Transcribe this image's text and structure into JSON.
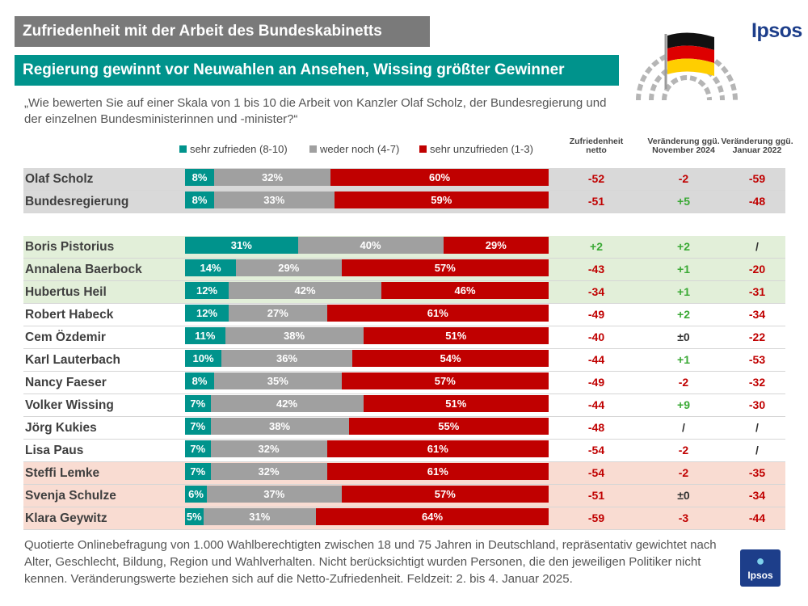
{
  "header": {
    "title": "Zufriedenheit mit der Arbeit des Bundeskabinetts",
    "subtitle": "Regierung gewinnt vor Neuwahlen an Ansehen, Wissing größter Gewinner",
    "question": "„Wie bewerten Sie auf einer Skala von 1 bis 10 die Arbeit von Kanzler Olaf Scholz, der Bundesregierung und der einzelnen Bundesministerinnen und -minister?“",
    "brand": "Ipsos"
  },
  "legend": [
    {
      "label": "sehr zufrieden (8-10)",
      "color": "#00938c"
    },
    {
      "label": "weder noch (4-7)",
      "color": "#a0a0a0"
    },
    {
      "label": "sehr unzufrieden (1-3)",
      "color": "#c00000"
    }
  ],
  "columns": {
    "net": [
      "Zufriedenheit",
      "netto"
    ],
    "nov": [
      "Veränderung ggü.",
      "November 2024"
    ],
    "jan": [
      "Veränderung ggü.",
      "Januar 2022"
    ]
  },
  "colors": {
    "positive": "#3aa935",
    "negative": "#c00000",
    "neutral": "#333333",
    "group_government": "#d9d9d9",
    "group_top": "#e2efd9",
    "group_bottom": "#f9dcd2"
  },
  "chart_data": {
    "type": "bar",
    "stacked": true,
    "orientation": "horizontal",
    "categories": [
      "Olaf Scholz",
      "Bundesregierung",
      "Boris Pistorius",
      "Annalena Baerbock",
      "Hubertus Heil",
      "Robert Habeck",
      "Cem Özdemir",
      "Karl Lauterbach",
      "Nancy Faeser",
      "Volker Wissing",
      "Jörg Kukies",
      "Lisa Paus",
      "Steffi Lemke",
      "Svenja Schulze",
      "Klara Geywitz"
    ],
    "groups": [
      "government",
      "government",
      "top",
      "top",
      "top",
      "mid",
      "mid",
      "mid",
      "mid",
      "mid",
      "mid",
      "mid",
      "bottom",
      "bottom",
      "bottom"
    ],
    "series": [
      {
        "name": "sehr zufrieden (8-10)",
        "values": [
          8,
          8,
          31,
          14,
          12,
          12,
          11,
          10,
          8,
          7,
          7,
          7,
          7,
          6,
          5
        ]
      },
      {
        "name": "weder noch (4-7)",
        "values": [
          32,
          33,
          40,
          29,
          42,
          27,
          38,
          36,
          35,
          42,
          38,
          32,
          32,
          37,
          31
        ]
      },
      {
        "name": "sehr unzufrieden (1-3)",
        "values": [
          60,
          59,
          29,
          57,
          46,
          61,
          51,
          54,
          57,
          51,
          55,
          61,
          61,
          57,
          64
        ]
      }
    ],
    "net": [
      "-52",
      "-51",
      "+2",
      "-43",
      "-34",
      "-49",
      "-40",
      "-44",
      "-49",
      "-44",
      "-48",
      "-54",
      "-54",
      "-51",
      "-59"
    ],
    "change_nov_2024": [
      "-2",
      "+5",
      "+2",
      "+1",
      "+1",
      "+2",
      "±0",
      "+1",
      "-2",
      "+9",
      "/",
      "-2",
      "-2",
      "±0",
      "-3"
    ],
    "change_jan_2022": [
      "-59",
      "-48",
      "/",
      "-20",
      "-31",
      "-34",
      "-22",
      "-53",
      "-32",
      "-30",
      "/",
      "/",
      "-35",
      "-34",
      "-44"
    ],
    "xlim": [
      0,
      100
    ]
  },
  "footnote": "Quotierte Onlinebefragung von 1.000 Wahlberechtigten zwischen 18 und 75 Jahren in Deutschland, repräsentativ gewichtet nach Alter, Geschlecht, Bildung, Region und Wahlverhalten. Nicht berücksichtigt wurden Personen, die den jeweiligen Politiker nicht kennen. Veränderungswerte beziehen sich auf die Netto-Zufriedenheit. Feldzeit: 2. bis 4. Januar 2025."
}
